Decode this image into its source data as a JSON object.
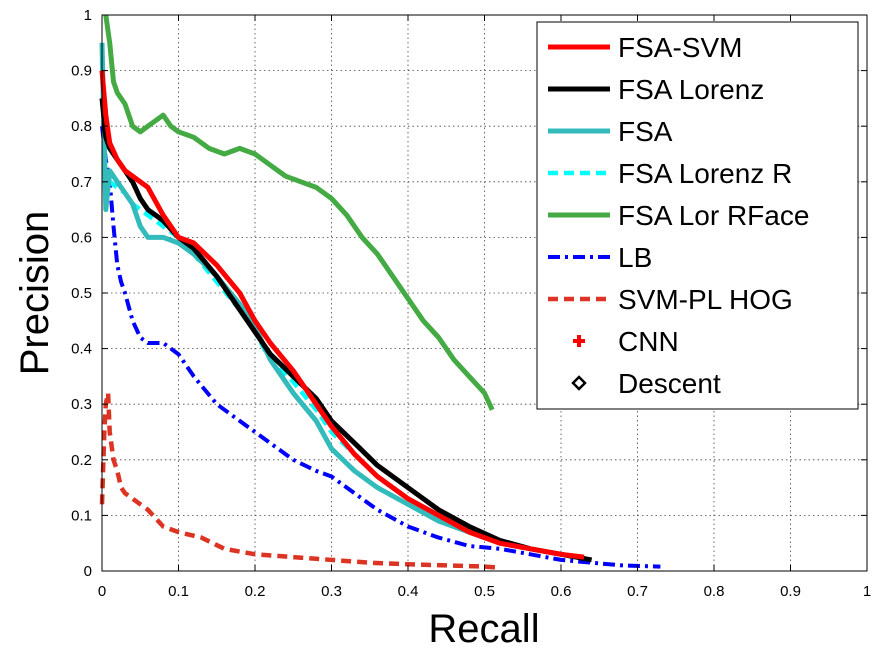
{
  "chart_data": {
    "type": "line",
    "title": "",
    "xlabel": "Recall",
    "ylabel": "Precision",
    "xlim": [
      0,
      1
    ],
    "ylim": [
      0,
      1
    ],
    "xticks": [
      "0",
      "0.1",
      "0.2",
      "0.3",
      "0.4",
      "0.5",
      "0.6",
      "0.7",
      "0.8",
      "0.9",
      "1"
    ],
    "yticks": [
      "0",
      "0.1",
      "0.2",
      "0.3",
      "0.4",
      "0.5",
      "0.6",
      "0.7",
      "0.8",
      "0.9",
      "1"
    ],
    "grid": true,
    "legend_position": "top-right",
    "series": [
      {
        "name": "FSA-SVM",
        "color": "#ff0000",
        "style": "solid",
        "x": [
          0.0,
          0.005,
          0.01,
          0.02,
          0.03,
          0.04,
          0.05,
          0.06,
          0.08,
          0.1,
          0.12,
          0.15,
          0.18,
          0.2,
          0.22,
          0.25,
          0.28,
          0.3,
          0.33,
          0.36,
          0.4,
          0.44,
          0.48,
          0.52,
          0.56,
          0.6,
          0.63
        ],
        "y": [
          0.9,
          0.82,
          0.77,
          0.74,
          0.72,
          0.71,
          0.7,
          0.69,
          0.64,
          0.6,
          0.59,
          0.55,
          0.5,
          0.45,
          0.41,
          0.36,
          0.3,
          0.26,
          0.21,
          0.17,
          0.13,
          0.1,
          0.07,
          0.05,
          0.04,
          0.03,
          0.025
        ]
      },
      {
        "name": "FSA Lorenz",
        "color": "#000000",
        "style": "solid",
        "x": [
          0.0,
          0.005,
          0.01,
          0.02,
          0.03,
          0.04,
          0.05,
          0.06,
          0.08,
          0.1,
          0.12,
          0.15,
          0.18,
          0.2,
          0.22,
          0.25,
          0.28,
          0.3,
          0.33,
          0.36,
          0.4,
          0.44,
          0.48,
          0.52,
          0.56,
          0.6,
          0.64
        ],
        "y": [
          0.85,
          0.78,
          0.76,
          0.74,
          0.72,
          0.7,
          0.67,
          0.65,
          0.63,
          0.6,
          0.58,
          0.53,
          0.47,
          0.43,
          0.39,
          0.35,
          0.31,
          0.27,
          0.23,
          0.19,
          0.15,
          0.11,
          0.08,
          0.055,
          0.04,
          0.03,
          0.02
        ]
      },
      {
        "name": "FSA",
        "color": "#33bbbb",
        "style": "solid",
        "x": [
          0.0,
          0.005,
          0.01,
          0.02,
          0.03,
          0.04,
          0.05,
          0.06,
          0.08,
          0.1,
          0.12,
          0.15,
          0.18,
          0.2,
          0.22,
          0.25,
          0.28,
          0.3,
          0.33,
          0.36,
          0.4,
          0.44,
          0.48,
          0.52,
          0.56
        ],
        "y": [
          0.95,
          0.65,
          0.72,
          0.7,
          0.68,
          0.66,
          0.62,
          0.6,
          0.6,
          0.59,
          0.57,
          0.53,
          0.48,
          0.44,
          0.38,
          0.32,
          0.27,
          0.22,
          0.18,
          0.15,
          0.12,
          0.09,
          0.07,
          0.05,
          0.04
        ]
      },
      {
        "name": "FSA Lorenz R",
        "color": "#00ffff",
        "style": "dashed",
        "x": [
          0.0,
          0.005,
          0.01,
          0.02,
          0.03,
          0.04,
          0.05,
          0.06,
          0.08,
          0.1,
          0.12,
          0.15,
          0.18,
          0.2,
          0.22,
          0.25,
          0.28,
          0.3,
          0.33,
          0.36,
          0.4,
          0.44,
          0.48,
          0.52,
          0.56
        ],
        "y": [
          0.92,
          0.68,
          0.7,
          0.69,
          0.68,
          0.66,
          0.65,
          0.64,
          0.62,
          0.6,
          0.57,
          0.52,
          0.47,
          0.43,
          0.38,
          0.34,
          0.29,
          0.25,
          0.21,
          0.17,
          0.13,
          0.1,
          0.07,
          0.05,
          0.04
        ]
      },
      {
        "name": "FSA Lor RFace",
        "color": "#44aa44",
        "style": "solid",
        "x": [
          0.005,
          0.01,
          0.015,
          0.02,
          0.03,
          0.04,
          0.05,
          0.06,
          0.07,
          0.08,
          0.09,
          0.1,
          0.12,
          0.14,
          0.16,
          0.18,
          0.2,
          0.22,
          0.24,
          0.26,
          0.28,
          0.3,
          0.32,
          0.34,
          0.36,
          0.38,
          0.4,
          0.42,
          0.44,
          0.46,
          0.48,
          0.5,
          0.51
        ],
        "y": [
          1.0,
          0.95,
          0.88,
          0.86,
          0.84,
          0.8,
          0.79,
          0.8,
          0.81,
          0.82,
          0.8,
          0.79,
          0.78,
          0.76,
          0.75,
          0.76,
          0.75,
          0.73,
          0.71,
          0.7,
          0.69,
          0.67,
          0.64,
          0.6,
          0.57,
          0.53,
          0.49,
          0.45,
          0.42,
          0.38,
          0.35,
          0.32,
          0.29
        ]
      },
      {
        "name": "LB",
        "color": "#0000ff",
        "style": "dashdot",
        "x": [
          0.0,
          0.005,
          0.01,
          0.015,
          0.02,
          0.025,
          0.03,
          0.04,
          0.05,
          0.06,
          0.08,
          0.1,
          0.12,
          0.15,
          0.18,
          0.2,
          0.22,
          0.25,
          0.28,
          0.3,
          0.33,
          0.36,
          0.4,
          0.44,
          0.48,
          0.52,
          0.56,
          0.6,
          0.64,
          0.68,
          0.73
        ],
        "y": [
          0.8,
          0.74,
          0.7,
          0.62,
          0.55,
          0.52,
          0.5,
          0.45,
          0.42,
          0.41,
          0.41,
          0.39,
          0.35,
          0.3,
          0.27,
          0.25,
          0.23,
          0.2,
          0.18,
          0.17,
          0.14,
          0.11,
          0.08,
          0.06,
          0.045,
          0.04,
          0.03,
          0.02,
          0.015,
          0.01,
          0.008
        ]
      },
      {
        "name": "SVM-PL HOG",
        "color": "#dd3322",
        "style": "dashed",
        "x": [
          0.0,
          0.003,
          0.005,
          0.008,
          0.01,
          0.015,
          0.02,
          0.025,
          0.03,
          0.04,
          0.05,
          0.06,
          0.08,
          0.1,
          0.13,
          0.16,
          0.2,
          0.25,
          0.3,
          0.35,
          0.4,
          0.45,
          0.5,
          0.52
        ],
        "y": [
          0.12,
          0.25,
          0.3,
          0.32,
          0.25,
          0.2,
          0.18,
          0.15,
          0.14,
          0.13,
          0.12,
          0.11,
          0.08,
          0.07,
          0.06,
          0.04,
          0.03,
          0.025,
          0.02,
          0.015,
          0.012,
          0.01,
          0.008,
          0.006
        ]
      },
      {
        "name": "CNN",
        "color": "#ff0000",
        "style": "marker-plus",
        "x": [],
        "y": []
      },
      {
        "name": "Descent",
        "color": "#000000",
        "style": "marker-diamond",
        "x": [],
        "y": []
      }
    ]
  }
}
